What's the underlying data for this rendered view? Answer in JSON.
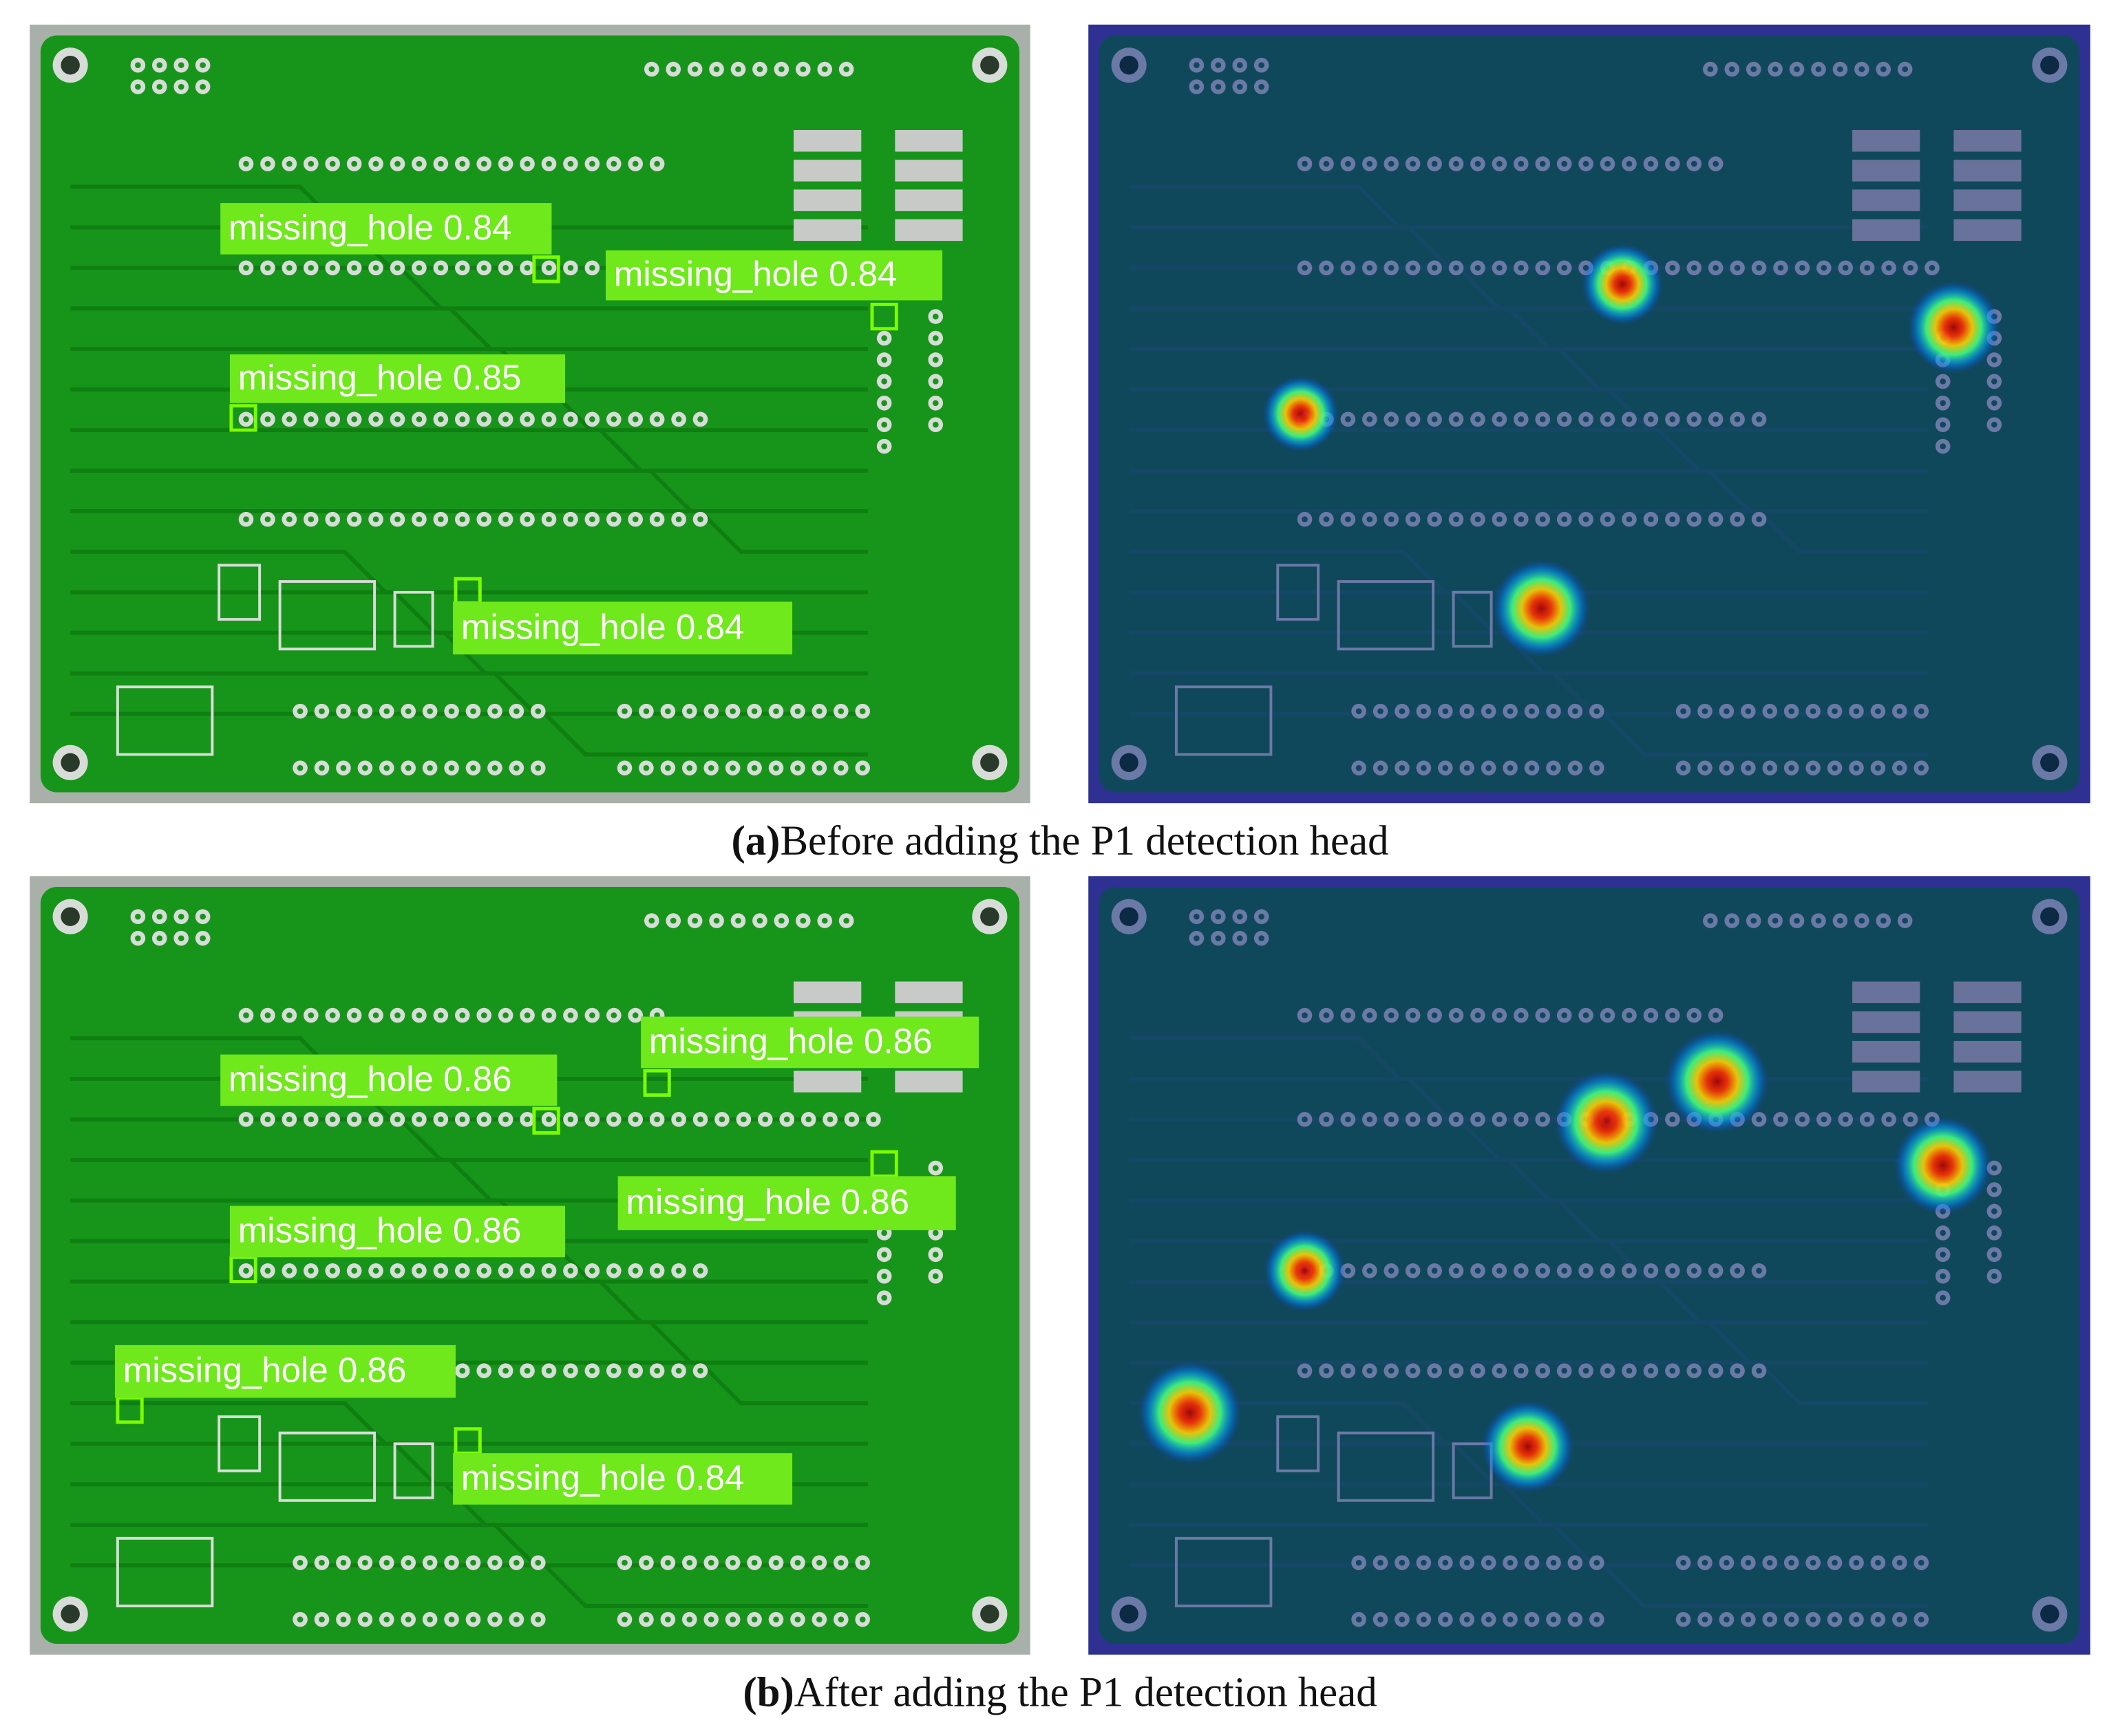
{
  "panels": [
    {
      "caption": {
        "label": "(a)",
        "text": "Before adding the P1 detection head"
      },
      "detections": [
        "missing_hole 0.84",
        "missing_hole 0.84",
        "missing_hole 0.85",
        "missing_hole 0.84"
      ]
    },
    {
      "caption": {
        "label": "(b)",
        "text": "After adding the P1 detection head"
      },
      "detections": [
        "missing_hole 0.86",
        "missing_hole 0.86",
        "missing_hole 0.86",
        "missing_hole 0.86",
        "missing_hole 0.86",
        "missing_hole 0.84"
      ]
    }
  ]
}
